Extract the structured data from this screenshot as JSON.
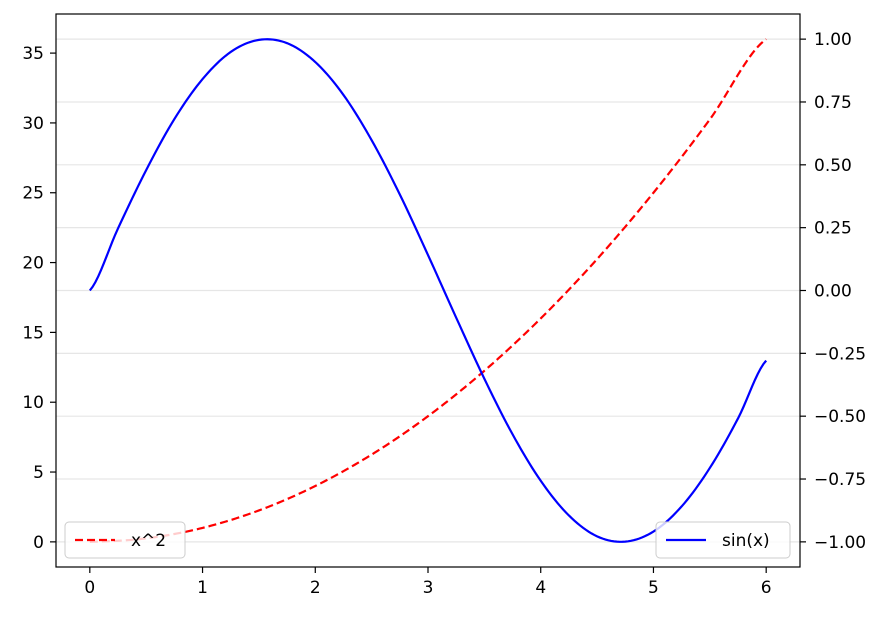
{
  "chart_data": {
    "type": "line",
    "title": "",
    "xlabel": "",
    "ylabel": "",
    "y2label": "",
    "grid": {
      "horizontal": true,
      "vertical": false,
      "axis": "secondary"
    },
    "xlim": [
      -0.3,
      6.3
    ],
    "ylim": [
      -1.8,
      37.8
    ],
    "y2lim": [
      -1.1,
      1.1
    ],
    "x_ticks": [
      0,
      1,
      2,
      3,
      4,
      5,
      6
    ],
    "x_tick_labels": [
      "0",
      "1",
      "2",
      "3",
      "4",
      "5",
      "6"
    ],
    "y_ticks": [
      0,
      5,
      10,
      15,
      20,
      25,
      30,
      35
    ],
    "y_tick_labels": [
      "0",
      "5",
      "10",
      "15",
      "20",
      "25",
      "30",
      "35"
    ],
    "y2_ticks": [
      -1.0,
      -0.75,
      -0.5,
      -0.25,
      0.0,
      0.25,
      0.5,
      0.75,
      1.0
    ],
    "y2_tick_labels": [
      "−1.00",
      "−0.75",
      "−0.50",
      "−0.25",
      "0.00",
      "0.25",
      "0.50",
      "0.75",
      "1.00"
    ],
    "series": [
      {
        "name": "x^2",
        "axis": "left",
        "color": "#ff0000",
        "style": "dashed",
        "legend_position": "lower-left",
        "x": [
          0,
          0.5,
          1,
          1.5,
          2,
          2.5,
          3,
          3.5,
          4,
          4.5,
          5,
          5.5,
          6
        ],
        "y": [
          0,
          0.25,
          1,
          2.25,
          4,
          6.25,
          9,
          12.25,
          16,
          20.25,
          25,
          30.25,
          36
        ]
      },
      {
        "name": "sin(x)",
        "axis": "right",
        "color": "#0000ff",
        "style": "solid",
        "legend_position": "lower-right",
        "x": [
          0,
          0.25,
          0.5,
          0.75,
          1,
          1.25,
          1.5,
          1.75,
          2,
          2.25,
          2.5,
          2.75,
          3,
          3.25,
          3.5,
          3.75,
          4,
          4.25,
          4.5,
          4.75,
          5,
          5.25,
          5.5,
          5.75,
          6
        ],
        "y": [
          0,
          0.247,
          0.479,
          0.682,
          0.841,
          0.949,
          0.997,
          0.984,
          0.909,
          0.778,
          0.598,
          0.382,
          0.141,
          -0.108,
          -0.351,
          -0.572,
          -0.757,
          -0.895,
          -0.978,
          -0.999,
          -0.959,
          -0.859,
          -0.706,
          -0.509,
          -0.279
        ]
      }
    ]
  }
}
